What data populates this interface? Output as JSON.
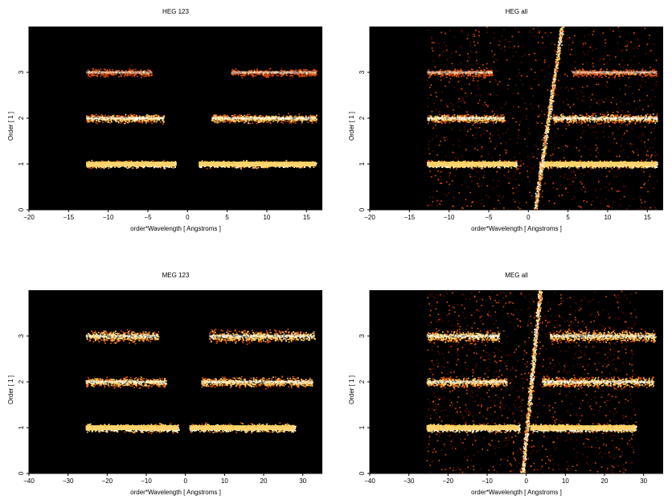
{
  "chart_data": [
    {
      "type": "heatmap",
      "title": "HEG 123",
      "xlabel": "order*Wavelength [ Angstroms ]",
      "ylabel": "Order [ 1 ]",
      "xlim": [
        -20,
        17
      ],
      "ylim": [
        0,
        4
      ],
      "xticks": [
        -20,
        -15,
        -10,
        -5,
        0,
        5,
        10,
        15
      ],
      "yticks": [
        0,
        1,
        2,
        3
      ],
      "background": "#000000",
      "bands": [
        {
          "order": 1,
          "x_ranges": [
            [
              -12.8,
              -1.5
            ],
            [
              1.4,
              16.2
            ]
          ],
          "intensity": "high",
          "thickness": 0.1
        },
        {
          "order": 2,
          "x_ranges": [
            [
              -12.8,
              -3.0
            ],
            [
              3.0,
              16.2
            ]
          ],
          "intensity": "medium",
          "thickness": 0.13
        },
        {
          "order": 3,
          "x_ranges": [
            [
              -12.8,
              -4.5
            ],
            [
              5.5,
              16.2
            ]
          ],
          "intensity": "low",
          "thickness": 0.13
        }
      ],
      "streak": null,
      "diffuse": 0.0
    },
    {
      "type": "heatmap",
      "title": "HEG all",
      "xlabel": "order*Wavelength [ Angstroms ]",
      "ylabel": "Order [ 1 ]",
      "xlim": [
        -20,
        17
      ],
      "ylim": [
        0,
        4
      ],
      "xticks": [
        -20,
        -15,
        -10,
        -5,
        0,
        5,
        10,
        15
      ],
      "yticks": [
        0,
        1,
        2,
        3
      ],
      "background": "#000000",
      "bands": [
        {
          "order": 1,
          "x_ranges": [
            [
              -12.8,
              -1.5
            ],
            [
              1.4,
              16.2
            ]
          ],
          "intensity": "high",
          "thickness": 0.1
        },
        {
          "order": 2,
          "x_ranges": [
            [
              -12.8,
              -3.0
            ],
            [
              3.0,
              16.2
            ]
          ],
          "intensity": "medium",
          "thickness": 0.13
        },
        {
          "order": 3,
          "x_ranges": [
            [
              -12.8,
              -4.5
            ],
            [
              5.5,
              16.2
            ]
          ],
          "intensity": "low",
          "thickness": 0.13
        }
      ],
      "streak": {
        "x_bottom": 0.8,
        "x_top": 4.2
      },
      "diffuse": 0.6
    },
    {
      "type": "heatmap",
      "title": "MEG 123",
      "xlabel": "order*Wavelength [ Angstroms ]",
      "ylabel": "Order [ 1 ]",
      "xlim": [
        -40,
        35
      ],
      "ylim": [
        0,
        4
      ],
      "xticks": [
        -40,
        -30,
        -20,
        -10,
        0,
        10,
        20,
        30
      ],
      "yticks": [
        0,
        1,
        2,
        3
      ],
      "background": "#000000",
      "bands": [
        {
          "order": 1,
          "x_ranges": [
            [
              -25.5,
              -1.8
            ],
            [
              1.0,
              28.0
            ]
          ],
          "intensity": "high",
          "thickness": 0.12
        },
        {
          "order": 2,
          "x_ranges": [
            [
              -25.5,
              -5.0
            ],
            [
              4.0,
              32.5
            ]
          ],
          "intensity": "medium",
          "thickness": 0.15
        },
        {
          "order": 3,
          "x_ranges": [
            [
              -25.5,
              -7.0
            ],
            [
              6.0,
              33.0
            ]
          ],
          "intensity": "medium",
          "thickness": 0.18
        }
      ],
      "streak": null,
      "diffuse": 0.0
    },
    {
      "type": "heatmap",
      "title": "MEG all",
      "xlabel": "order*Wavelength [ Angstroms ]",
      "ylabel": "Order [ 1 ]",
      "xlim": [
        -40,
        35
      ],
      "ylim": [
        0,
        4
      ],
      "xticks": [
        -40,
        -30,
        -20,
        -10,
        0,
        10,
        20,
        30
      ],
      "yticks": [
        0,
        1,
        2,
        3
      ],
      "background": "#000000",
      "bands": [
        {
          "order": 1,
          "x_ranges": [
            [
              -25.5,
              -1.8
            ],
            [
              1.0,
              28.0
            ]
          ],
          "intensity": "high",
          "thickness": 0.12
        },
        {
          "order": 2,
          "x_ranges": [
            [
              -25.5,
              -5.0
            ],
            [
              4.0,
              32.5
            ]
          ],
          "intensity": "medium",
          "thickness": 0.15
        },
        {
          "order": 3,
          "x_ranges": [
            [
              -25.5,
              -7.0
            ],
            [
              6.0,
              33.0
            ]
          ],
          "intensity": "medium",
          "thickness": 0.18
        }
      ],
      "streak": {
        "x_bottom": -1.0,
        "x_top": 3.5
      },
      "diffuse": 0.7
    }
  ],
  "colors": {
    "background": "#000000",
    "low": "#5a0d00",
    "mid": "#e0500a",
    "high": "#ffd060",
    "peak": "#ffffff"
  }
}
